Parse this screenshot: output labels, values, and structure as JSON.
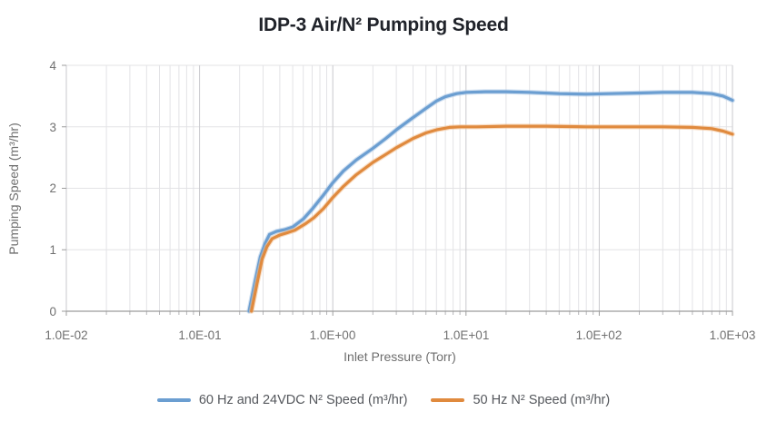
{
  "title": "IDP-3 Air/N² Pumping Speed",
  "chart_data": {
    "type": "line",
    "x_scale": "log",
    "x_axis_label": "Inlet Pressure (Torr)",
    "y_axis_label": "Pumping Speed (m³/hr)",
    "x_range_torr": [
      0.01,
      1000
    ],
    "y_range": [
      0,
      4
    ],
    "x_tick_labels": [
      "1.0E-02",
      "1.0E-01",
      "1.0E+00",
      "1.0E+01",
      "1.0E+02",
      "1.0E+03"
    ],
    "y_tick_labels": [
      "0",
      "1",
      "2",
      "3",
      "4"
    ],
    "grid": {
      "vertical": "log decades with minor lines",
      "horizontal": "major integer lines"
    },
    "legend_position": "bottom",
    "series": [
      {
        "name": "60 Hz and 24VDC N² Speed (m³/hr)",
        "color": "#6b9ed1",
        "halo_color": "#a9c7e6",
        "points_torr_vs_m3hr": [
          [
            0.235,
            0
          ],
          [
            0.26,
            0.47
          ],
          [
            0.285,
            0.88
          ],
          [
            0.31,
            1.1
          ],
          [
            0.335,
            1.25
          ],
          [
            0.38,
            1.3
          ],
          [
            0.44,
            1.33
          ],
          [
            0.5,
            1.37
          ],
          [
            0.6,
            1.5
          ],
          [
            0.7,
            1.66
          ],
          [
            0.85,
            1.89
          ],
          [
            1.0,
            2.09
          ],
          [
            1.2,
            2.28
          ],
          [
            1.5,
            2.46
          ],
          [
            2.0,
            2.65
          ],
          [
            2.5,
            2.81
          ],
          [
            3.0,
            2.95
          ],
          [
            4.0,
            3.15
          ],
          [
            5.0,
            3.3
          ],
          [
            6.0,
            3.42
          ],
          [
            7.0,
            3.49
          ],
          [
            8.5,
            3.54
          ],
          [
            10,
            3.56
          ],
          [
            14,
            3.57
          ],
          [
            20,
            3.57
          ],
          [
            30,
            3.56
          ],
          [
            50,
            3.54
          ],
          [
            80,
            3.53
          ],
          [
            120,
            3.54
          ],
          [
            200,
            3.55
          ],
          [
            300,
            3.56
          ],
          [
            500,
            3.56
          ],
          [
            700,
            3.54
          ],
          [
            850,
            3.5
          ],
          [
            1000,
            3.43
          ]
        ]
      },
      {
        "name": "50 Hz N² Speed (m³/hr)",
        "color": "#e08a3e",
        "halo_color": "#f2c193",
        "points_torr_vs_m3hr": [
          [
            0.245,
            0
          ],
          [
            0.27,
            0.45
          ],
          [
            0.295,
            0.85
          ],
          [
            0.32,
            1.05
          ],
          [
            0.35,
            1.18
          ],
          [
            0.4,
            1.24
          ],
          [
            0.46,
            1.28
          ],
          [
            0.52,
            1.32
          ],
          [
            0.62,
            1.42
          ],
          [
            0.72,
            1.52
          ],
          [
            0.85,
            1.67
          ],
          [
            1.0,
            1.85
          ],
          [
            1.2,
            2.03
          ],
          [
            1.5,
            2.22
          ],
          [
            2.0,
            2.42
          ],
          [
            2.5,
            2.55
          ],
          [
            3.0,
            2.66
          ],
          [
            3.5,
            2.74
          ],
          [
            4.0,
            2.81
          ],
          [
            5.0,
            2.9
          ],
          [
            6.0,
            2.95
          ],
          [
            7.5,
            2.99
          ],
          [
            9.0,
            3.0
          ],
          [
            12,
            3.0
          ],
          [
            20,
            3.01
          ],
          [
            40,
            3.01
          ],
          [
            80,
            3.0
          ],
          [
            150,
            3.0
          ],
          [
            300,
            3.0
          ],
          [
            500,
            2.99
          ],
          [
            700,
            2.97
          ],
          [
            850,
            2.93
          ],
          [
            1000,
            2.88
          ]
        ]
      }
    ]
  },
  "colors": {
    "background": "#ffffff",
    "title_text": "#20232a",
    "tick_text": "#707070",
    "axis_label_text": "#6e6e6e",
    "legend_text": "#54575c",
    "grid_minor": "#e3e3e6",
    "grid_major": "#c9c9cd",
    "axis_line": "#9c9c9c",
    "tick_mark": "#b5b5b8"
  }
}
